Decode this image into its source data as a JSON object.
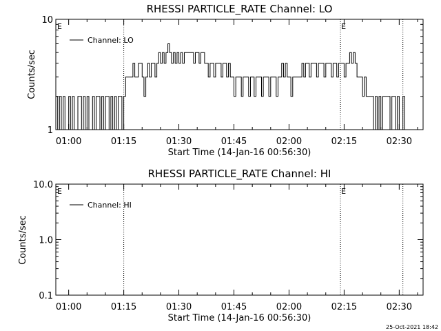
{
  "footer": {
    "timestamp": "25-Oct-2021 18:42"
  },
  "chart_data": [
    {
      "type": "line",
      "title": "RHESSI PARTICLE_RATE Channel: LO",
      "xlabel": "Start Time (14-Jan-16 00:56:30)",
      "ylabel": "Counts/sec",
      "yscale": "log",
      "ylim": [
        1,
        10
      ],
      "xlim": [
        "00:56:30",
        "02:36:30"
      ],
      "xticks": [
        "01:00",
        "01:15",
        "01:30",
        "01:45",
        "02:00",
        "02:15",
        "02:30"
      ],
      "yticks": [
        "1",
        "10"
      ],
      "legend": {
        "label": "Channel: LO",
        "placement": "top-left"
      },
      "markers": [
        {
          "time": "01:15",
          "label": ""
        },
        {
          "time": "02:14",
          "label": "E"
        },
        {
          "time": "02:31",
          "label": ""
        }
      ],
      "start_marker_label": "E",
      "series": [
        {
          "name": "Channel: LO",
          "points": [
            [
              "00:56:30",
              2
            ],
            [
              "00:57:00",
              1
            ],
            [
              "00:57:30",
              2
            ],
            [
              "00:58:00",
              1
            ],
            [
              "00:58:30",
              2
            ],
            [
              "00:59:00",
              1
            ],
            [
              "00:59:30",
              1
            ],
            [
              "01:00:00",
              2
            ],
            [
              "01:00:30",
              1
            ],
            [
              "01:01:00",
              2
            ],
            [
              "01:01:30",
              1
            ],
            [
              "01:02:00",
              1
            ],
            [
              "01:02:30",
              2
            ],
            [
              "01:03:00",
              2
            ],
            [
              "01:03:30",
              1
            ],
            [
              "01:04:00",
              2
            ],
            [
              "01:04:30",
              1
            ],
            [
              "01:05:00",
              2
            ],
            [
              "01:05:30",
              1
            ],
            [
              "01:06:00",
              1
            ],
            [
              "01:06:30",
              2
            ],
            [
              "01:07:00",
              1
            ],
            [
              "01:07:30",
              2
            ],
            [
              "01:08:00",
              2
            ],
            [
              "01:08:30",
              1
            ],
            [
              "01:09:00",
              2
            ],
            [
              "01:09:30",
              1
            ],
            [
              "01:10:00",
              2
            ],
            [
              "01:10:30",
              2
            ],
            [
              "01:11:00",
              1
            ],
            [
              "01:11:30",
              2
            ],
            [
              "01:12:00",
              1
            ],
            [
              "01:12:30",
              2
            ],
            [
              "01:13:00",
              1
            ],
            [
              "01:13:30",
              2
            ],
            [
              "01:14:00",
              2
            ],
            [
              "01:14:30",
              1
            ],
            [
              "01:15:00",
              2
            ],
            [
              "01:15:30",
              3
            ],
            [
              "01:16:00",
              3
            ],
            [
              "01:16:30",
              3
            ],
            [
              "01:17:00",
              3
            ],
            [
              "01:17:30",
              4
            ],
            [
              "01:18:00",
              3
            ],
            [
              "01:18:30",
              3
            ],
            [
              "01:19:00",
              4
            ],
            [
              "01:19:30",
              4
            ],
            [
              "01:20:00",
              3
            ],
            [
              "01:20:30",
              2
            ],
            [
              "01:21:00",
              3
            ],
            [
              "01:21:30",
              4
            ],
            [
              "01:22:00",
              3
            ],
            [
              "01:22:30",
              4
            ],
            [
              "01:23:00",
              4
            ],
            [
              "01:23:30",
              3
            ],
            [
              "01:24:00",
              4
            ],
            [
              "01:24:30",
              5
            ],
            [
              "01:25:00",
              4
            ],
            [
              "01:25:30",
              5
            ],
            [
              "01:26:00",
              4
            ],
            [
              "01:26:30",
              5
            ],
            [
              "01:27:00",
              6
            ],
            [
              "01:27:30",
              5
            ],
            [
              "01:28:00",
              4
            ],
            [
              "01:28:30",
              5
            ],
            [
              "01:29:00",
              4
            ],
            [
              "01:29:30",
              5
            ],
            [
              "01:30:00",
              4
            ],
            [
              "01:30:30",
              5
            ],
            [
              "01:31:00",
              4
            ],
            [
              "01:31:30",
              5
            ],
            [
              "01:32:00",
              5
            ],
            [
              "01:32:30",
              5
            ],
            [
              "01:33:00",
              5
            ],
            [
              "01:33:30",
              5
            ],
            [
              "01:34:00",
              4
            ],
            [
              "01:34:30",
              5
            ],
            [
              "01:35:00",
              5
            ],
            [
              "01:35:30",
              4
            ],
            [
              "01:36:00",
              5
            ],
            [
              "01:36:30",
              5
            ],
            [
              "01:37:00",
              4
            ],
            [
              "01:37:30",
              4
            ],
            [
              "01:38:00",
              3
            ],
            [
              "01:38:30",
              4
            ],
            [
              "01:39:00",
              4
            ],
            [
              "01:39:30",
              3
            ],
            [
              "01:40:00",
              4
            ],
            [
              "01:40:30",
              4
            ],
            [
              "01:41:00",
              4
            ],
            [
              "01:41:30",
              3
            ],
            [
              "01:42:00",
              4
            ],
            [
              "01:42:30",
              4
            ],
            [
              "01:43:00",
              3
            ],
            [
              "01:43:30",
              4
            ],
            [
              "01:44:00",
              3
            ],
            [
              "01:44:30",
              3
            ],
            [
              "01:45:00",
              2
            ],
            [
              "01:45:30",
              3
            ],
            [
              "01:46:00",
              3
            ],
            [
              "01:46:30",
              3
            ],
            [
              "01:47:00",
              2
            ],
            [
              "01:47:30",
              3
            ],
            [
              "01:48:00",
              3
            ],
            [
              "01:48:30",
              3
            ],
            [
              "01:49:00",
              2
            ],
            [
              "01:49:30",
              3
            ],
            [
              "01:50:00",
              3
            ],
            [
              "01:50:30",
              2
            ],
            [
              "01:51:00",
              3
            ],
            [
              "01:51:30",
              3
            ],
            [
              "01:52:00",
              3
            ],
            [
              "01:52:30",
              2
            ],
            [
              "01:53:00",
              3
            ],
            [
              "01:53:30",
              3
            ],
            [
              "01:54:00",
              3
            ],
            [
              "01:54:30",
              2
            ],
            [
              "01:55:00",
              3
            ],
            [
              "01:55:30",
              3
            ],
            [
              "01:56:00",
              3
            ],
            [
              "01:56:30",
              2
            ],
            [
              "01:57:00",
              3
            ],
            [
              "01:57:30",
              3
            ],
            [
              "01:58:00",
              4
            ],
            [
              "01:58:30",
              3
            ],
            [
              "01:59:00",
              4
            ],
            [
              "01:59:30",
              3
            ],
            [
              "02:00:00",
              3
            ],
            [
              "02:00:30",
              2
            ],
            [
              "02:01:00",
              3
            ],
            [
              "02:01:30",
              3
            ],
            [
              "02:02:00",
              3
            ],
            [
              "02:02:30",
              3
            ],
            [
              "02:03:00",
              3
            ],
            [
              "02:03:30",
              4
            ],
            [
              "02:04:00",
              3
            ],
            [
              "02:04:30",
              4
            ],
            [
              "02:05:00",
              4
            ],
            [
              "02:05:30",
              3
            ],
            [
              "02:06:00",
              4
            ],
            [
              "02:06:30",
              4
            ],
            [
              "02:07:00",
              4
            ],
            [
              "02:07:30",
              3
            ],
            [
              "02:08:00",
              4
            ],
            [
              "02:08:30",
              4
            ],
            [
              "02:09:00",
              4
            ],
            [
              "02:09:30",
              3
            ],
            [
              "02:10:00",
              4
            ],
            [
              "02:10:30",
              4
            ],
            [
              "02:11:00",
              4
            ],
            [
              "02:11:30",
              3
            ],
            [
              "02:12:00",
              4
            ],
            [
              "02:12:30",
              4
            ],
            [
              "02:13:00",
              3
            ],
            [
              "02:13:30",
              4
            ],
            [
              "02:14:00",
              4
            ],
            [
              "02:14:30",
              4
            ],
            [
              "02:15:00",
              3
            ],
            [
              "02:15:30",
              4
            ],
            [
              "02:16:00",
              4
            ],
            [
              "02:16:30",
              5
            ],
            [
              "02:17:00",
              4
            ],
            [
              "02:17:30",
              5
            ],
            [
              "02:18:00",
              4
            ],
            [
              "02:18:30",
              3
            ],
            [
              "02:19:00",
              3
            ],
            [
              "02:19:30",
              3
            ],
            [
              "02:20:00",
              2
            ],
            [
              "02:20:30",
              3
            ],
            [
              "02:21:00",
              2
            ],
            [
              "02:21:30",
              2
            ],
            [
              "02:22:00",
              2
            ],
            [
              "02:22:30",
              2
            ],
            [
              "02:23:00",
              1
            ],
            [
              "02:23:30",
              2
            ],
            [
              "02:24:00",
              1
            ],
            [
              "02:24:30",
              2
            ],
            [
              "02:25:00",
              1
            ],
            [
              "02:25:30",
              2
            ],
            [
              "02:26:00",
              2
            ],
            [
              "02:26:30",
              2
            ],
            [
              "02:27:00",
              2
            ],
            [
              "02:27:30",
              1
            ],
            [
              "02:28:00",
              2
            ],
            [
              "02:28:30",
              2
            ],
            [
              "02:29:00",
              1
            ],
            [
              "02:29:30",
              2
            ],
            [
              "02:30:00",
              1
            ],
            [
              "02:30:30",
              1
            ],
            [
              "02:31:00",
              2
            ],
            [
              "02:31:30",
              1
            ]
          ]
        }
      ]
    },
    {
      "type": "line",
      "title": "RHESSI PARTICLE_RATE Channel: HI",
      "xlabel": "Start Time (14-Jan-16 00:56:30)",
      "ylabel": "Counts/sec",
      "yscale": "log",
      "ylim": [
        0.1,
        10
      ],
      "xlim": [
        "00:56:30",
        "02:36:30"
      ],
      "xticks": [
        "01:00",
        "01:15",
        "01:30",
        "01:45",
        "02:00",
        "02:15",
        "02:30"
      ],
      "yticks": [
        "0.1",
        "1.0",
        "10.0"
      ],
      "legend": {
        "label": "Channel: HI",
        "placement": "top-left"
      },
      "markers": [
        {
          "time": "01:15",
          "label": ""
        },
        {
          "time": "02:14",
          "label": "E"
        },
        {
          "time": "02:31",
          "label": ""
        }
      ],
      "start_marker_label": "E",
      "series": [
        {
          "name": "Channel: HI",
          "points": []
        }
      ]
    }
  ]
}
